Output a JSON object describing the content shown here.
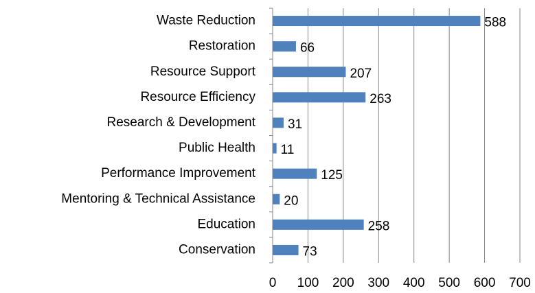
{
  "chart_data": {
    "type": "bar",
    "orientation": "horizontal",
    "categories": [
      "Waste Reduction",
      "Restoration",
      "Resource Support",
      "Resource Efficiency",
      "Research & Development",
      "Public Health",
      "Performance Improvement",
      "Mentoring & Technical Assistance",
      "Education",
      "Conservation"
    ],
    "values": [
      588,
      66,
      207,
      263,
      31,
      11,
      125,
      20,
      258,
      73
    ],
    "color": "#4f81bd",
    "xlim": [
      0,
      700
    ],
    "xticks": [
      0,
      100,
      200,
      300,
      400,
      500,
      600,
      700
    ],
    "grid": true
  }
}
